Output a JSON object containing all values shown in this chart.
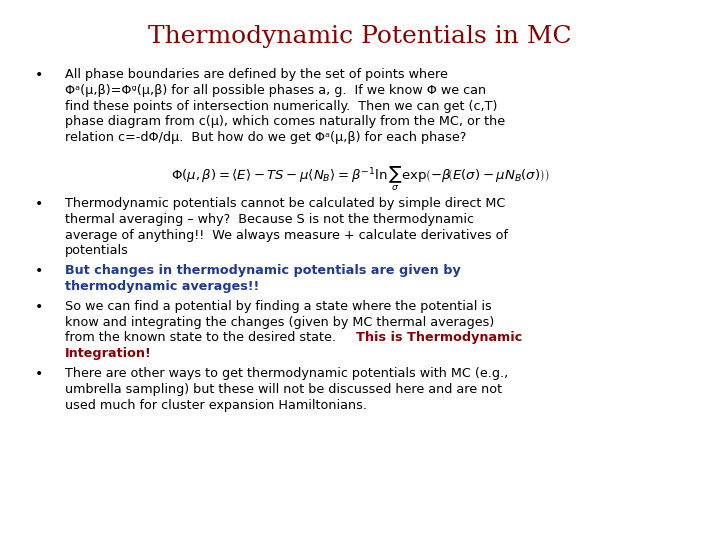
{
  "title": "Thermodynamic Potentials in MC",
  "title_color": "#8B0000",
  "title_fontsize": 18,
  "bg_color": "#ffffff",
  "bullet_color": "#000000",
  "blue_color": "#1F3A8F",
  "red_color": "#8B0000",
  "body_fontsize": 9.2,
  "bullet1_line1": "All phase boundaries are defined by the set of points where",
  "bullet1_line2": "Φᵃ(μ,β)=Φᵍ(μ,β) for all possible phases a, g.  If we know Φ we can",
  "bullet1_line3": "find these points of intersection numerically.  Then we can get (c,T)",
  "bullet1_line4": "phase diagram from c(μ), which comes naturally from the MC, or the",
  "bullet1_line5": "relation c=-dΦ/dμ.  But how do we get Φᵃ(μ,β) for each phase?",
  "bullet2_line1": "Thermodynamic potentials cannot be calculated by simple direct MC",
  "bullet2_line2": "thermal averaging – why?  Because S is not the thermodynamic",
  "bullet2_line3": "average of anything!!  We always measure + calculate derivatives of",
  "bullet2_line4": "potentials",
  "bullet3_line1": "But changes in thermodynamic potentials are given by",
  "bullet3_line2": "thermodynamic averages!!",
  "bullet4_line1": "So we can find a potential by finding a state where the potential is",
  "bullet4_line2": "know and integrating the changes (given by MC thermal averages)",
  "bullet4_line3_black": "from the known state to the desired state.  ",
  "bullet4_line3_red": "This is Thermodynamic",
  "bullet4_line4_red": "Integration!",
  "bullet5_line1": "There are other ways to get thermodynamic potentials with MC (e.g.,",
  "bullet5_line2": "umbrella sampling) but these will not be discussed here and are not",
  "bullet5_line3": "used much for cluster expansion Hamiltonians."
}
